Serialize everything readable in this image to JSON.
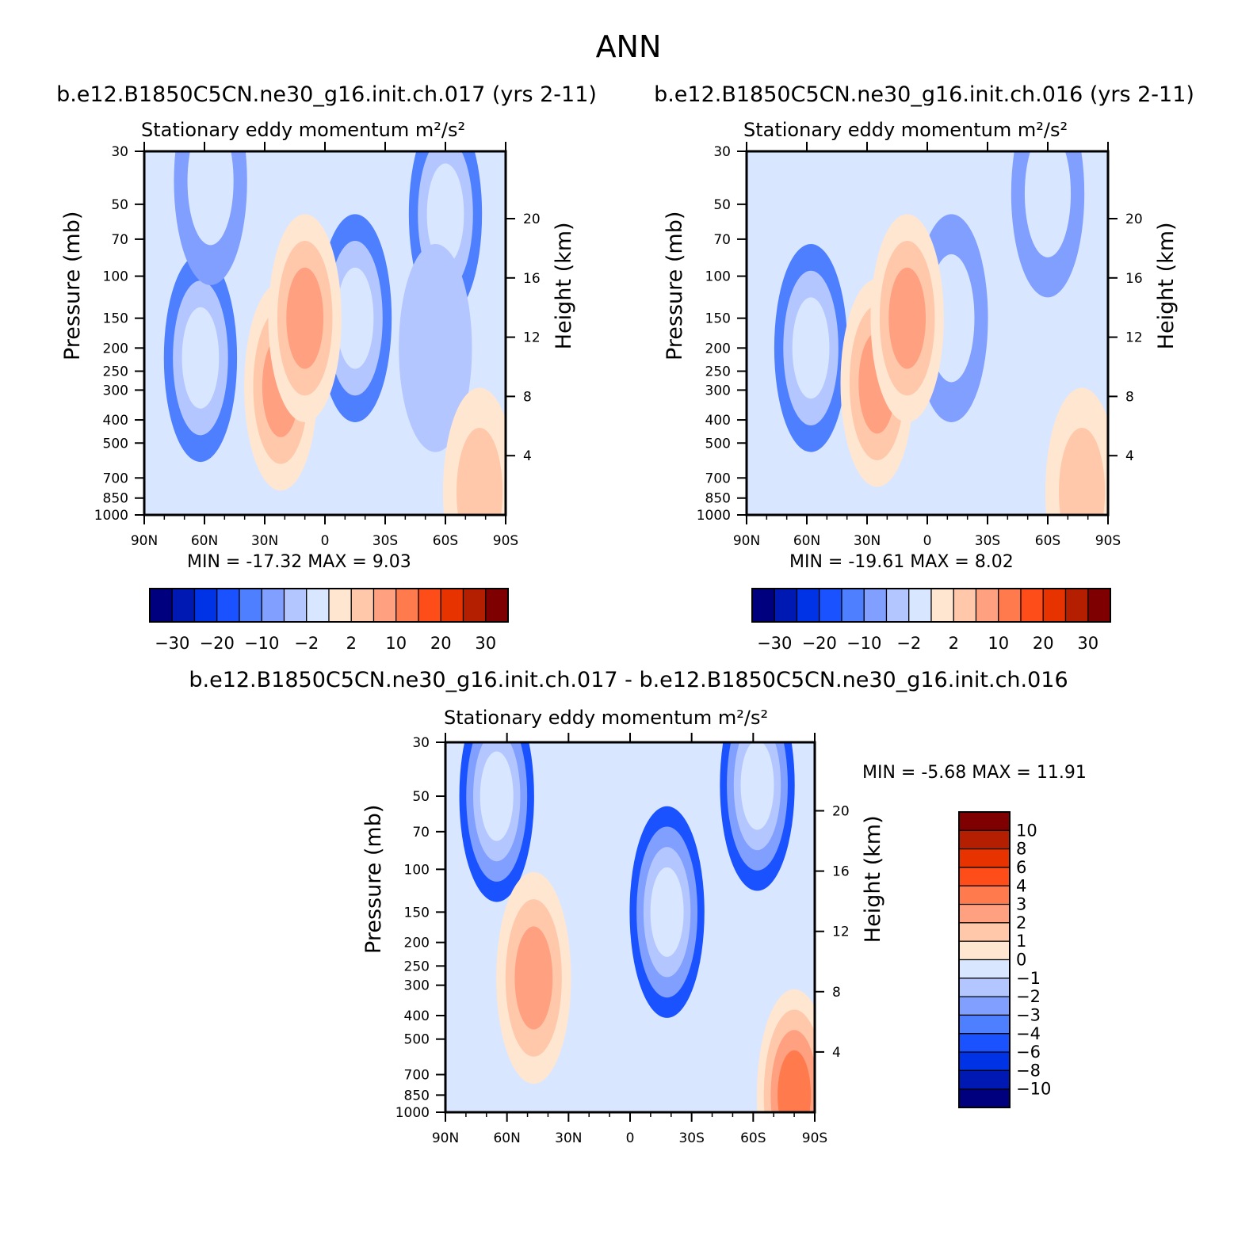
{
  "figure": {
    "title": "ANN",
    "y_label": "Pressure (mb)",
    "y2_label": "Height (km)",
    "x_ticks": [
      "90N",
      "60N",
      "30N",
      "0",
      "30S",
      "60S",
      "90S"
    ],
    "p_ticks": [
      "30",
      "50",
      "70",
      "100",
      "150",
      "200",
      "250",
      "300",
      "400",
      "500",
      "700",
      "850",
      "1000"
    ],
    "h_ticks": [
      "20",
      "16",
      "12",
      "8",
      "4"
    ],
    "min_label": "MIN =",
    "max_label": "MAX ="
  },
  "chart_data": [
    {
      "type": "heatmap",
      "case_title": "b.e12.B1850C5CN.ne30_g16.init.ch.017 (yrs 2-11)",
      "variable": "Stationary eddy momentum",
      "units": "m²/s²",
      "min": "-17.32",
      "max": "9.03",
      "colorbar": {
        "levels": [
          -30,
          -25,
          -20,
          -15,
          -10,
          -6,
          -2,
          0,
          2,
          6,
          10,
          15,
          20,
          25,
          30
        ],
        "labels": [
          "-30",
          "-20",
          "-10",
          "-2",
          "2",
          "10",
          "20",
          "30"
        ]
      },
      "features": [
        {
          "lat": 62,
          "p": 220,
          "value": -12
        },
        {
          "lat": 22,
          "p": 290,
          "value": 7
        },
        {
          "lat": -15,
          "p": 150,
          "value": -10
        },
        {
          "lat": 10,
          "p": 150,
          "value": 8
        },
        {
          "lat": 57,
          "p": 40,
          "value": -6
        },
        {
          "lat": -60,
          "p": 55,
          "value": -10
        },
        {
          "lat": -55,
          "p": 200,
          "value": -5
        },
        {
          "lat": -77,
          "p": 800,
          "value": 4
        }
      ]
    },
    {
      "type": "heatmap",
      "case_title": "b.e12.B1850C5CN.ne30_g16.init.ch.016 (yrs 2-11)",
      "variable": "Stationary eddy momentum",
      "units": "m²/s²",
      "min": "-19.61",
      "max": "8.02",
      "colorbar": {
        "levels": [
          -30,
          -25,
          -20,
          -15,
          -10,
          -6,
          -2,
          0,
          2,
          6,
          10,
          15,
          20,
          25,
          30
        ],
        "labels": [
          "-30",
          "-20",
          "-10",
          "-2",
          "2",
          "10",
          "20",
          "30"
        ]
      },
      "features": [
        {
          "lat": 58,
          "p": 200,
          "value": -12
        },
        {
          "lat": 25,
          "p": 280,
          "value": 7
        },
        {
          "lat": -12,
          "p": 150,
          "value": -9
        },
        {
          "lat": 10,
          "p": 150,
          "value": 7
        },
        {
          "lat": -60,
          "p": 45,
          "value": -6
        },
        {
          "lat": -77,
          "p": 800,
          "value": 4
        }
      ]
    },
    {
      "type": "heatmap",
      "case_title": "b.e12.B1850C5CN.ne30_g16.init.ch.017 - b.e12.B1850C5CN.ne30_g16.init.ch.016",
      "variable": "Stationary eddy momentum",
      "units": "m²/s²",
      "min": "-5.68",
      "max": "11.91",
      "colorbar": {
        "levels": [
          -10,
          -8,
          -6,
          -4,
          -3,
          -2,
          -1,
          0,
          1,
          2,
          3,
          4,
          6,
          8,
          10
        ],
        "labels": [
          "10",
          "8",
          "6",
          "4",
          "3",
          "2",
          "1",
          "0",
          "-1",
          "-2",
          "-3",
          "-4",
          "-6",
          "-8",
          "-10"
        ]
      },
      "features": [
        {
          "lat": 65,
          "p": 50,
          "value": -5
        },
        {
          "lat": -62,
          "p": 45,
          "value": -5
        },
        {
          "lat": -18,
          "p": 150,
          "value": -4
        },
        {
          "lat": 47,
          "p": 280,
          "value": 2
        },
        {
          "lat": -80,
          "p": 850,
          "value": 3
        }
      ]
    }
  ]
}
